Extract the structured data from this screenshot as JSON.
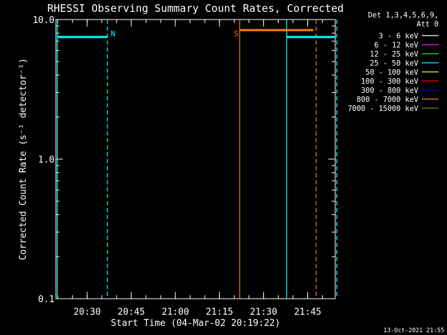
{
  "chart_data": {
    "type": "line",
    "title": "RHESSI Observing Summary Count Rates, Corrected",
    "xlabel": "Start Time (04-Mar-02 20:19:22)",
    "ylabel": "Corrected Count Rate (s⁻¹ detector⁻¹)",
    "yscale": "log",
    "ylim": [
      0.1,
      10.0
    ],
    "xlim_minutes_after_start": [
      0,
      95
    ],
    "x_ticks": [
      "20:30",
      "20:45",
      "21:00",
      "21:15",
      "21:30",
      "21:45"
    ],
    "y_ticks": [
      "10.0",
      "1.0",
      "0.1"
    ],
    "legend": {
      "position": "top-right",
      "header": [
        "Det 1,3,4,5,6,9,",
        "Att 0"
      ],
      "entries": [
        {
          "label": "3 - 6 keV",
          "color": "#ffffff"
        },
        {
          "label": "6 - 12 keV",
          "color": "#ff00ff"
        },
        {
          "label": "12 - 25 keV",
          "color": "#00ff00"
        },
        {
          "label": "25 - 50 keV",
          "color": "#00ffff"
        },
        {
          "label": "50 - 100 keV",
          "color": "#ffff00"
        },
        {
          "label": "100 - 300 keV",
          "color": "#ff0000"
        },
        {
          "label": "300 - 800 keV",
          "color": "#0000ff"
        },
        {
          "label": "800 - 7000 keV",
          "color": "#ff8000"
        },
        {
          "label": "7000 - 15000 keV",
          "color": "#808000"
        }
      ]
    },
    "segments": [
      {
        "color": "#00ffff",
        "x_start": 0.5,
        "x_end": 17.5,
        "y": 7.5
      },
      {
        "color": "#ff8000",
        "x_start": 62.5,
        "x_end": 87.5,
        "y": 8.4
      },
      {
        "color": "#00ffff",
        "x_start": 78.5,
        "x_end": 95.0,
        "y": 7.5
      }
    ],
    "markers": [
      {
        "x": 0.5,
        "style": "solid",
        "color": "#00ffff"
      },
      {
        "x": 17.5,
        "style": "dashed",
        "color": "#00ffff",
        "label": "N"
      },
      {
        "x": 62.5,
        "style": "solid",
        "color": "#ff8000",
        "label": "S"
      },
      {
        "x": 78.5,
        "style": "solid",
        "color": "#00ffff"
      },
      {
        "x": 88.5,
        "style": "dashed",
        "color": "#ff8000"
      },
      {
        "x": 95.5,
        "style": "dashed",
        "color": "#00ffff"
      }
    ]
  },
  "footer_timestamp": "13-Oct-2021 21:55"
}
